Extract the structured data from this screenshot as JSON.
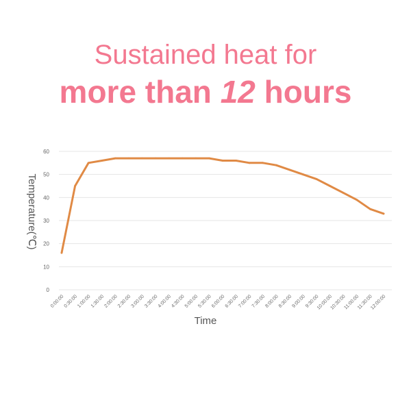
{
  "headline": {
    "line1": "Sustained heat for",
    "line2_before": "more than ",
    "line2_number": "12",
    "line2_after": " hours"
  },
  "colors": {
    "headline": "#f37890",
    "series": "#e08a45",
    "grid": "#e4e4e4"
  },
  "chart_data": {
    "type": "line",
    "xlabel": "Time",
    "ylabel": "Temperature(℃)",
    "ylim": [
      0,
      60
    ],
    "yticks": [
      0,
      10,
      20,
      30,
      40,
      50,
      60
    ],
    "grid": true,
    "x": [
      "0:00:00",
      "0:30:00",
      "1:00:00",
      "1:30:00",
      "2:00:00",
      "2:30:00",
      "3:00:00",
      "3:30:00",
      "4:00:00",
      "4:30:00",
      "5:00:00",
      "5:30:00",
      "6:00:00",
      "6:30:00",
      "7:00:00",
      "7:30:00",
      "8:00:00",
      "8:30:00",
      "9:00:00",
      "9:30:00",
      "10:00:00",
      "10:30:00",
      "11:00:00",
      "11:30:00",
      "12:00:00"
    ],
    "series": [
      {
        "values": [
          16,
          45,
          55,
          56,
          57,
          57,
          57,
          57,
          57,
          57,
          57,
          57,
          56,
          56,
          55,
          55,
          54,
          52,
          50,
          48,
          45,
          42,
          39,
          35,
          33
        ]
      }
    ]
  }
}
